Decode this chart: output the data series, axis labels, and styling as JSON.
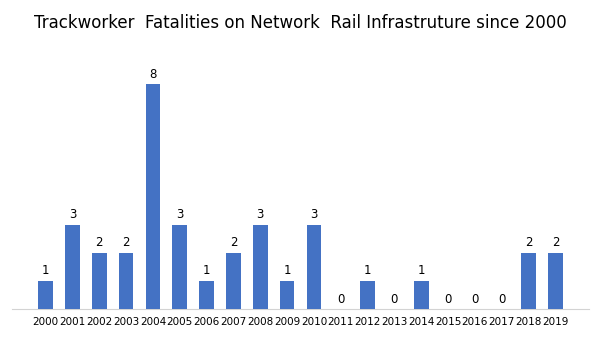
{
  "title": "Trackworker  Fatalities on Network  Rail Infrastruture since 2000",
  "years": [
    2000,
    2001,
    2002,
    2003,
    2004,
    2005,
    2006,
    2007,
    2008,
    2009,
    2010,
    2011,
    2012,
    2013,
    2014,
    2015,
    2016,
    2017,
    2018,
    2019
  ],
  "values": [
    1,
    3,
    2,
    2,
    8,
    3,
    1,
    2,
    3,
    1,
    3,
    0,
    1,
    0,
    1,
    0,
    0,
    0,
    2,
    2
  ],
  "bar_color": "#4472c4",
  "bar_width": 0.55,
  "ylim": [
    0,
    9.5
  ],
  "title_fontsize": 12,
  "label_fontsize": 8.5,
  "tick_fontsize": 7.5,
  "background_color": "#ffffff",
  "grid_color": "#d3d3d3"
}
